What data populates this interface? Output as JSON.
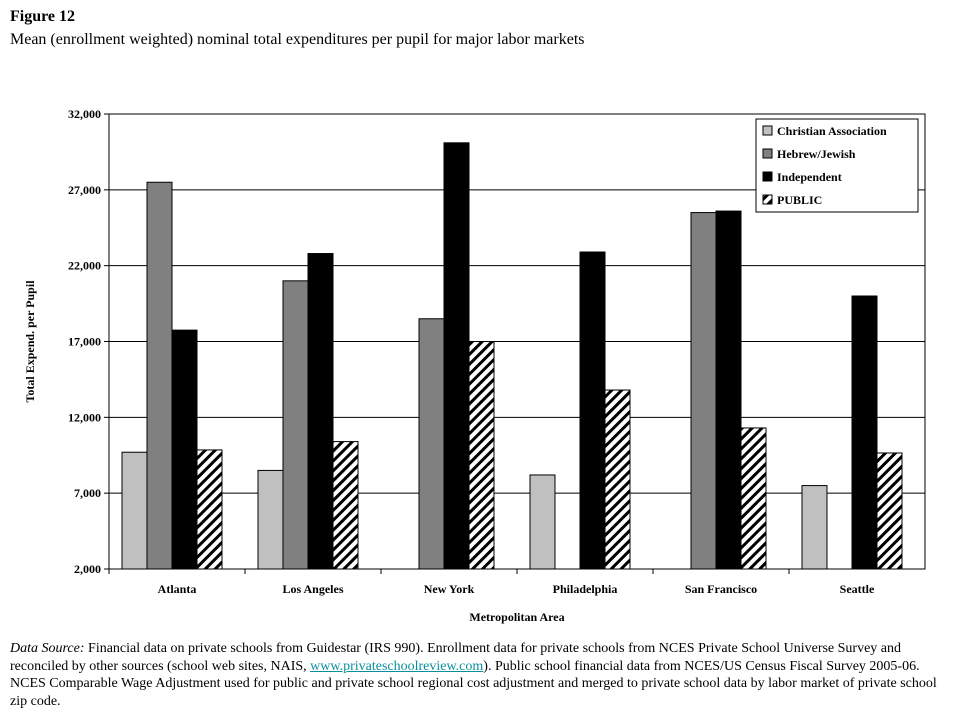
{
  "figure_label": "Figure 12",
  "title": "Mean (enrollment weighted) nominal total expenditures per pupil for major labor markets",
  "source": {
    "label": "Data Source:",
    "text1": " Financial data on private schools from Guidestar (IRS 990). Enrollment data for private schools from NCES Private School Universe Survey and reconciled by other sources (school web sites, NAIS, ",
    "link": "www.privateschoolreview.com",
    "text2": "). Public school financial data from NCES/US Census Fiscal Survey 2005-06. NCES Comparable Wage Adjustment used for public and private school regional cost adjustment and merged to private school data by labor market of private school zip code."
  },
  "chart_data": {
    "type": "bar",
    "title": "Mean (enrollment weighted) nominal total expenditures per pupil for major labor markets",
    "xlabel": "Metropolitan Area",
    "ylabel": "Total Expend. per Pupil",
    "ylim": [
      2000,
      32000
    ],
    "yticks": [
      2000,
      7000,
      12000,
      17000,
      22000,
      27000,
      32000
    ],
    "ytick_labels": [
      "2,000",
      "7,000",
      "12,000",
      "17,000",
      "22,000",
      "27,000",
      "32,000"
    ],
    "grid": true,
    "legend": "top-right",
    "categories": [
      "Atlanta",
      "Los Angeles",
      "New York",
      "Philadelphia",
      "San Francisco",
      "Seattle"
    ],
    "series": [
      {
        "name": "Christian Association",
        "color": "#c0c0c0",
        "values": [
          9700,
          8500,
          null,
          8200,
          null,
          7500
        ]
      },
      {
        "name": "Hebrew/Jewish",
        "color": "#808080",
        "values": [
          27500,
          21000,
          18500,
          null,
          25500,
          null
        ]
      },
      {
        "name": "Independent",
        "color": "#000000",
        "values": [
          17750,
          22800,
          30100,
          22900,
          25600,
          20000
        ]
      },
      {
        "name": "PUBLIC",
        "color": "hatch",
        "values": [
          9850,
          10400,
          17000,
          13800,
          11300,
          9650
        ]
      }
    ]
  }
}
